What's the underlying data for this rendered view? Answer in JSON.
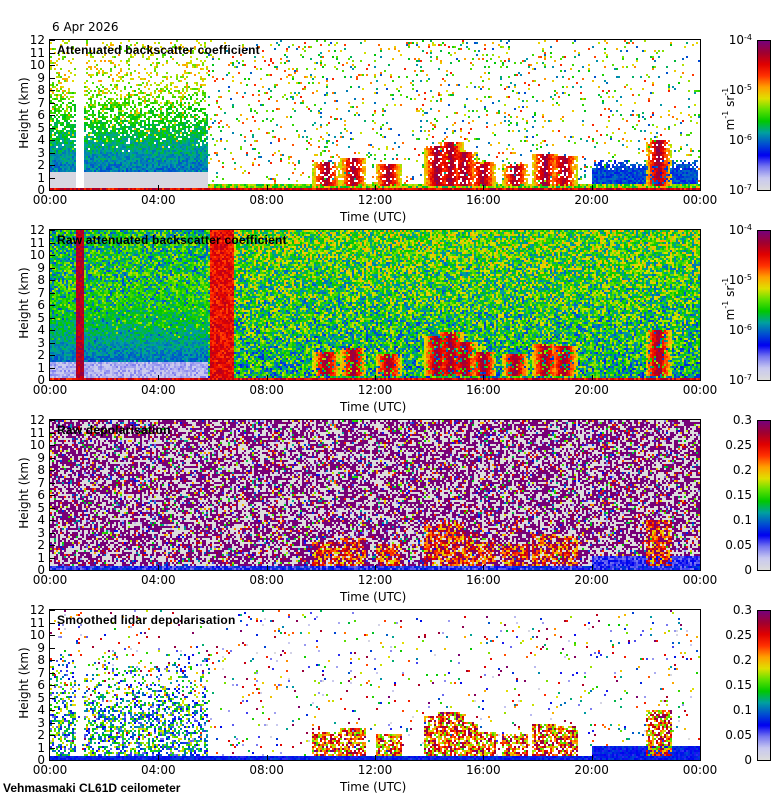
{
  "header": {
    "date": "6 Apr 2026"
  },
  "footer": {
    "instrument": "Vehmasmaki CL61D ceilometer"
  },
  "colors": {
    "colormap": [
      "#dcdcdc",
      "#c8c8f0",
      "#7878f0",
      "#0000f0",
      "#0050d0",
      "#00a0a0",
      "#00c800",
      "#60e000",
      "#e0e000",
      "#ffa000",
      "#ff3000",
      "#e00000",
      "#a00030",
      "#780078"
    ]
  },
  "chart_data": [
    {
      "type": "heatmap",
      "title": "Attenuated backscatter coefficient",
      "xlabel": "Time (UTC)",
      "ylabel": "Height (km)",
      "x_ticks": [
        "00:00",
        "04:00",
        "08:00",
        "12:00",
        "16:00",
        "20:00",
        "00:00"
      ],
      "y_ticks": [
        "0",
        "1",
        "2",
        "3",
        "4",
        "5",
        "6",
        "7",
        "8",
        "9",
        "10",
        "11",
        "12"
      ],
      "xlim": [
        0,
        24
      ],
      "ylim": [
        0,
        12
      ],
      "colorbar": {
        "scale": "log",
        "range": [
          1e-07,
          0.0001
        ],
        "ticks": [
          {
            "base": "10",
            "exp": "-7"
          },
          {
            "base": "10",
            "exp": "-6"
          },
          {
            "base": "10",
            "exp": "-5"
          },
          {
            "base": "10",
            "exp": "-4"
          }
        ],
        "unit": {
          "a": "m",
          "a_exp": "-1",
          "b": " sr",
          "b_exp": "-1"
        }
      },
      "field": "backscatter"
    },
    {
      "type": "heatmap",
      "title": "Raw attenuated backscatter coefficient",
      "xlabel": "Time (UTC)",
      "ylabel": "Height (km)",
      "x_ticks": [
        "00:00",
        "04:00",
        "08:00",
        "12:00",
        "16:00",
        "20:00",
        "00:00"
      ],
      "y_ticks": [
        "0",
        "1",
        "2",
        "3",
        "4",
        "5",
        "6",
        "7",
        "8",
        "9",
        "10",
        "11",
        "12"
      ],
      "xlim": [
        0,
        24
      ],
      "ylim": [
        0,
        12
      ],
      "colorbar": {
        "scale": "log",
        "range": [
          1e-07,
          0.0001
        ],
        "ticks": [
          {
            "base": "10",
            "exp": "-7"
          },
          {
            "base": "10",
            "exp": "-6"
          },
          {
            "base": "10",
            "exp": "-5"
          },
          {
            "base": "10",
            "exp": "-4"
          }
        ],
        "unit": {
          "a": "m",
          "a_exp": "-1",
          "b": " sr",
          "b_exp": "-1"
        }
      },
      "field": "raw_backscatter"
    },
    {
      "type": "heatmap",
      "title": "Raw depolarisation",
      "xlabel": "Time (UTC)",
      "ylabel": "Height (km)",
      "x_ticks": [
        "00:00",
        "04:00",
        "08:00",
        "12:00",
        "16:00",
        "20:00",
        "00:00"
      ],
      "y_ticks": [
        "0",
        "1",
        "2",
        "3",
        "4",
        "5",
        "6",
        "7",
        "8",
        "9",
        "10",
        "11",
        "12"
      ],
      "xlim": [
        0,
        24
      ],
      "ylim": [
        0,
        12
      ],
      "colorbar": {
        "scale": "linear",
        "range": [
          0,
          0.3
        ],
        "ticks": [
          "0",
          "0.05",
          "0.1",
          "0.15",
          "0.2",
          "0.25",
          "0.3"
        ]
      },
      "field": "raw_depol"
    },
    {
      "type": "heatmap",
      "title": "Smoothed lidar depolarisation",
      "xlabel": "Time (UTC)",
      "ylabel": "Height (km)",
      "x_ticks": [
        "00:00",
        "04:00",
        "08:00",
        "12:00",
        "16:00",
        "20:00",
        "00:00"
      ],
      "y_ticks": [
        "0",
        "1",
        "2",
        "3",
        "4",
        "5",
        "6",
        "7",
        "8",
        "9",
        "10",
        "11",
        "12"
      ],
      "xlim": [
        0,
        24
      ],
      "ylim": [
        0,
        12
      ],
      "colorbar": {
        "scale": "linear",
        "range": [
          0,
          0.3
        ],
        "ticks": [
          "0",
          "0.05",
          "0.1",
          "0.15",
          "0.2",
          "0.25",
          "0.3"
        ]
      },
      "field": "smooth_depol"
    }
  ]
}
